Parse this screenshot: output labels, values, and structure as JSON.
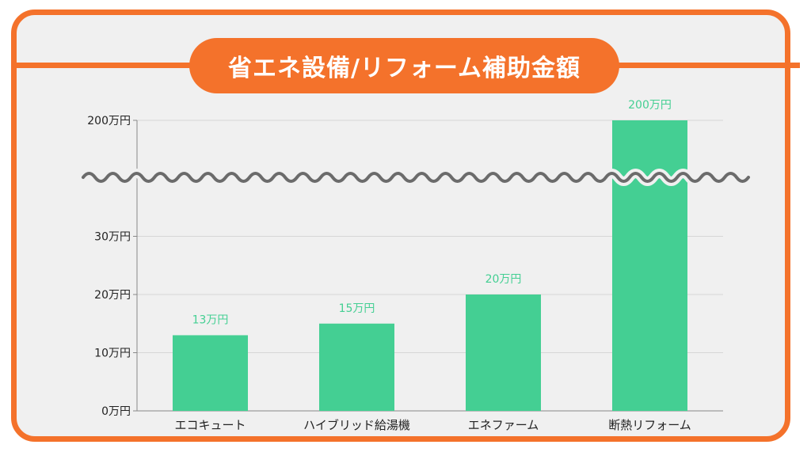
{
  "chart_data": {
    "type": "bar",
    "title": "省エネ設備/リフォーム補助金額",
    "categories": [
      "エコキュート",
      "ハイブリッド給湯機",
      "エネファーム",
      "断熱リフォーム"
    ],
    "values": [
      13,
      15,
      20,
      200
    ],
    "value_labels": [
      "13万円",
      "15万円",
      "20万円",
      "200万円"
    ],
    "y_ticks": [
      {
        "value": 0,
        "label": "0万円"
      },
      {
        "value": 10,
        "label": "10万円"
      },
      {
        "value": 20,
        "label": "20万円"
      },
      {
        "value": 30,
        "label": "30万円"
      },
      {
        "value": 200,
        "label": "200万円"
      }
    ],
    "ylim": [
      0,
      200
    ],
    "axis_break": [
      30,
      200
    ],
    "grid": true,
    "colors": {
      "bar": "#44cf93",
      "data_label": "#44cf93",
      "accent": "#f4722b",
      "break_line": "#6b6b6b",
      "grid": "#d6d6d6"
    }
  }
}
